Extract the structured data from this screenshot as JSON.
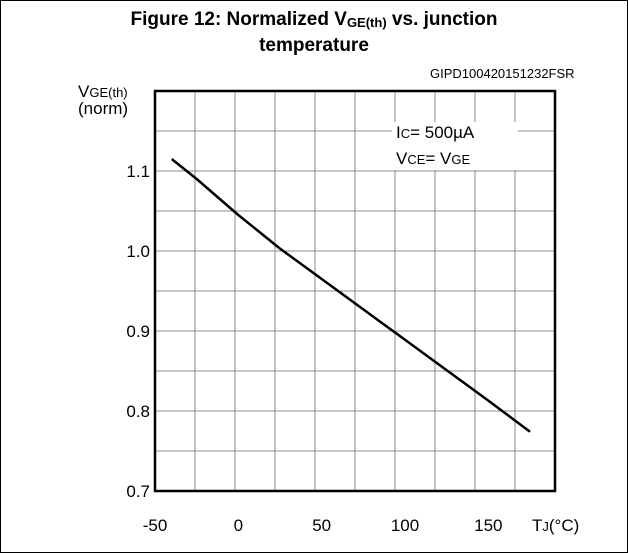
{
  "title": {
    "line1_prefix": "Figure 12: Normalized V",
    "line1_sub": "GE(th)",
    "line1_suffix": " vs. junction",
    "line2": "temperature"
  },
  "figure_code": "GIPD100420151232FSR",
  "y_axis_label": {
    "main": "V",
    "sub": "GE(th)",
    "norm": "(norm)"
  },
  "x_axis_label": {
    "main": "T",
    "sub": "J",
    "unit": "(°C)"
  },
  "annotation": {
    "line1": {
      "a": "I",
      "a_sub": "C",
      "rest": "= 500µA"
    },
    "line2": {
      "a": "V",
      "a_sub": "CE",
      "mid": "= V",
      "b_sub": "GE"
    }
  },
  "chart_data": {
    "type": "line",
    "xlim": [
      -50,
      190
    ],
    "ylim": [
      0.7,
      1.2
    ],
    "x_ticks": [
      "-50",
      "0",
      "50",
      "100",
      "150"
    ],
    "x_tick_values": [
      -50,
      0,
      50,
      100,
      150
    ],
    "y_ticks": [
      "0.7",
      "0.8",
      "0.9",
      "1.0",
      "1.1"
    ],
    "y_tick_values": [
      0.7,
      0.8,
      0.9,
      1.0,
      1.1
    ],
    "grid": true,
    "series": [
      {
        "x": [
          -40,
          -25,
          0,
          25,
          50,
          75,
          100,
          125,
          150,
          175
        ],
        "y": [
          1.115,
          1.09,
          1.045,
          1.003,
          0.965,
          0.927,
          0.889,
          0.851,
          0.813,
          0.774
        ]
      }
    ]
  },
  "colors": {
    "line": "#000000",
    "grid": "#8c8c8c",
    "axis": "#000000"
  }
}
